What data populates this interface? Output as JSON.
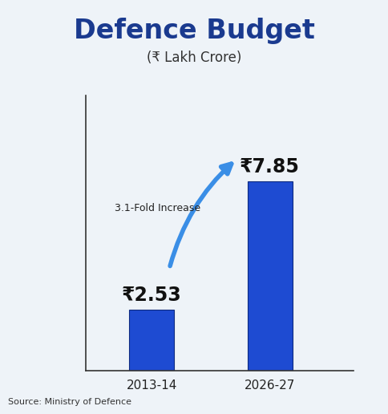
{
  "chart_data": {
    "type": "bar",
    "title": "Defence Budget",
    "subtitle": "(₹ Lakh Crore)",
    "categories": [
      "2013-14",
      "2026-27"
    ],
    "values": [
      2.53,
      7.85
    ],
    "value_labels": [
      "₹2.53",
      "₹7.85"
    ],
    "data_labels": true,
    "annotation": "3.1-Fold Increase",
    "source": "Source: Ministry of Defence",
    "color": "#1e4bd2",
    "ylim": [
      0,
      11.4
    ],
    "yticks": [],
    "tick_labels": "x",
    "grid": false
  }
}
